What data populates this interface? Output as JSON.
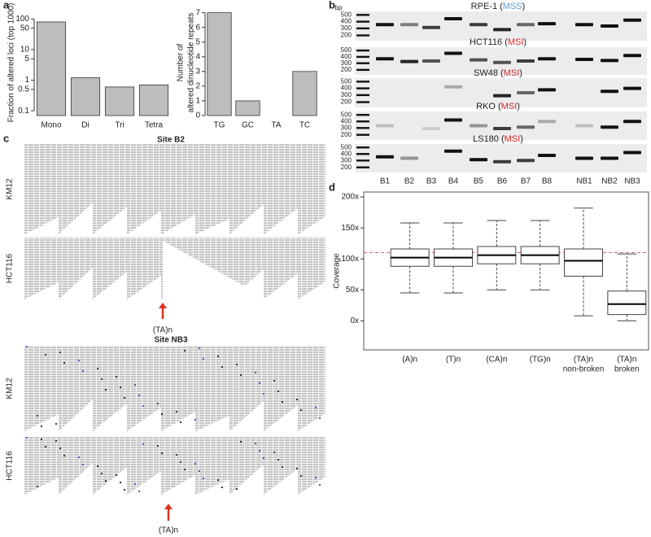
{
  "panel_labels": [
    "a",
    "b",
    "c",
    "d"
  ],
  "chart_data": [
    {
      "type": "bar",
      "y_label": [
        "Fraction of altered loci (top 1000)"
      ],
      "log_y": true,
      "categories": [
        "Mono",
        "Di",
        "Tri",
        "Tetra"
      ],
      "values": [
        80,
        1.2,
        0.6,
        0.7
      ],
      "color": "#bdbdbd",
      "ylim": [
        0.07,
        200
      ],
      "yticks": [
        0.1,
        0.5,
        1,
        5,
        10,
        50,
        100
      ]
    },
    {
      "type": "bar",
      "y_label": [
        "Number of",
        "altered dinucleotide repeats"
      ],
      "log_y": false,
      "categories": [
        "TG",
        "GC",
        "TA",
        "TC"
      ],
      "values": [
        7,
        1,
        0,
        3
      ],
      "color": "#bdbdbd",
      "ylim": [
        0,
        7.2
      ],
      "yticks": [
        0,
        1,
        2,
        3,
        4,
        5,
        6,
        7
      ]
    },
    {
      "type": "box",
      "y_label": [
        "Coverage"
      ],
      "categories": [
        [
          "(A)n"
        ],
        [
          "(T)n"
        ],
        [
          "(CA)n"
        ],
        [
          "(TG)n"
        ],
        [
          "(TA)n",
          "non-broken"
        ],
        [
          "(TA)n",
          "broken"
        ]
      ],
      "boxes": [
        {
          "whislo": 45,
          "q1": 88,
          "med": 102,
          "q3": 116,
          "whishi": 158
        },
        {
          "whislo": 45,
          "q1": 88,
          "med": 102,
          "q3": 116,
          "whishi": 158
        },
        {
          "whislo": 50,
          "q1": 92,
          "med": 106,
          "q3": 120,
          "whishi": 162
        },
        {
          "whislo": 50,
          "q1": 92,
          "med": 106,
          "q3": 120,
          "whishi": 162
        },
        {
          "whislo": 8,
          "q1": 72,
          "med": 97,
          "q3": 116,
          "whishi": 182
        },
        {
          "whislo": 0,
          "q1": 10,
          "med": 27,
          "q3": 48,
          "whishi": 108
        }
      ],
      "color": "#ffffff",
      "median_color": "#000000",
      "hline": 110,
      "hline_color": "#e06070",
      "ylim": [
        -47,
        208
      ],
      "yticks": [
        {
          "value": 0,
          "label": "0x"
        },
        {
          "value": 50,
          "label": "50x"
        },
        {
          "value": 100,
          "label": "100x"
        },
        {
          "value": 150,
          "label": "150x"
        },
        {
          "value": 200,
          "label": "200x"
        }
      ]
    }
  ],
  "gel": {
    "unit": "bp",
    "ladder": [
      "500",
      "400",
      "300",
      "200"
    ],
    "rows": [
      {
        "title": [
          "RPE-1 (",
          "MSS",
          ")"
        ],
        "status_color": "#5b9bd5"
      },
      {
        "title": [
          "HCT116 (",
          "MSI",
          ")"
        ],
        "status_color": "#d62728"
      },
      {
        "title": [
          "SW48 (",
          "MSI",
          ")"
        ],
        "status_color": "#d62728"
      },
      {
        "title": [
          "RKO (",
          "MSI",
          ")"
        ],
        "status_color": "#d62728"
      },
      {
        "title": [
          "LS180 (",
          "MSI",
          ")"
        ],
        "status_color": "#d62728"
      }
    ],
    "lanes": [
      "B1",
      "B2",
      "B3",
      "B4",
      "B5",
      "B6",
      "B7",
      "B8",
      "NB1",
      "NB2",
      "NB3"
    ]
  },
  "reads": {
    "sites": [
      {
        "title": "Site B2",
        "tracks": [
          "KM12",
          "HCT116"
        ],
        "marker": "(TA)n"
      },
      {
        "title": "Site NB3",
        "tracks": [
          "KM12",
          "HCT116"
        ],
        "marker": "(TA)n"
      }
    ]
  }
}
